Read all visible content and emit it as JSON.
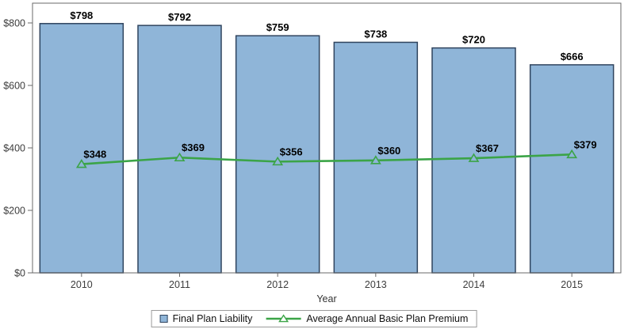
{
  "chart_data": {
    "type": "combo-bar-line",
    "categories": [
      "2010",
      "2011",
      "2012",
      "2013",
      "2014",
      "2015"
    ],
    "series": [
      {
        "name": "Final Plan Liability",
        "type": "bar",
        "values": [
          798,
          792,
          759,
          738,
          720,
          666
        ],
        "labels": [
          "$798",
          "$792",
          "$759",
          "$738",
          "$720",
          "$666"
        ],
        "color": "#8FB5D8",
        "border_color": "#2F445E"
      },
      {
        "name": "Average Annual Basic Plan Premium",
        "type": "line",
        "values": [
          348,
          369,
          356,
          360,
          367,
          379
        ],
        "labels": [
          "$348",
          "$369",
          "$356",
          "$360",
          "$367",
          "$379"
        ],
        "color": "#3BA447",
        "marker": "triangle-open"
      }
    ],
    "title": "",
    "xlabel": "Year",
    "ylabel": "",
    "ylim": [
      0,
      800
    ],
    "yticks": [
      0,
      200,
      400,
      600,
      800
    ],
    "ytick_labels": [
      "$0",
      "$200",
      "$400",
      "$600",
      "$800"
    ],
    "grid": false,
    "legend_position": "bottom"
  },
  "style": {
    "frame_color": "#696969",
    "tick_text_color": "#3d3d3d",
    "background": "#ffffff"
  }
}
